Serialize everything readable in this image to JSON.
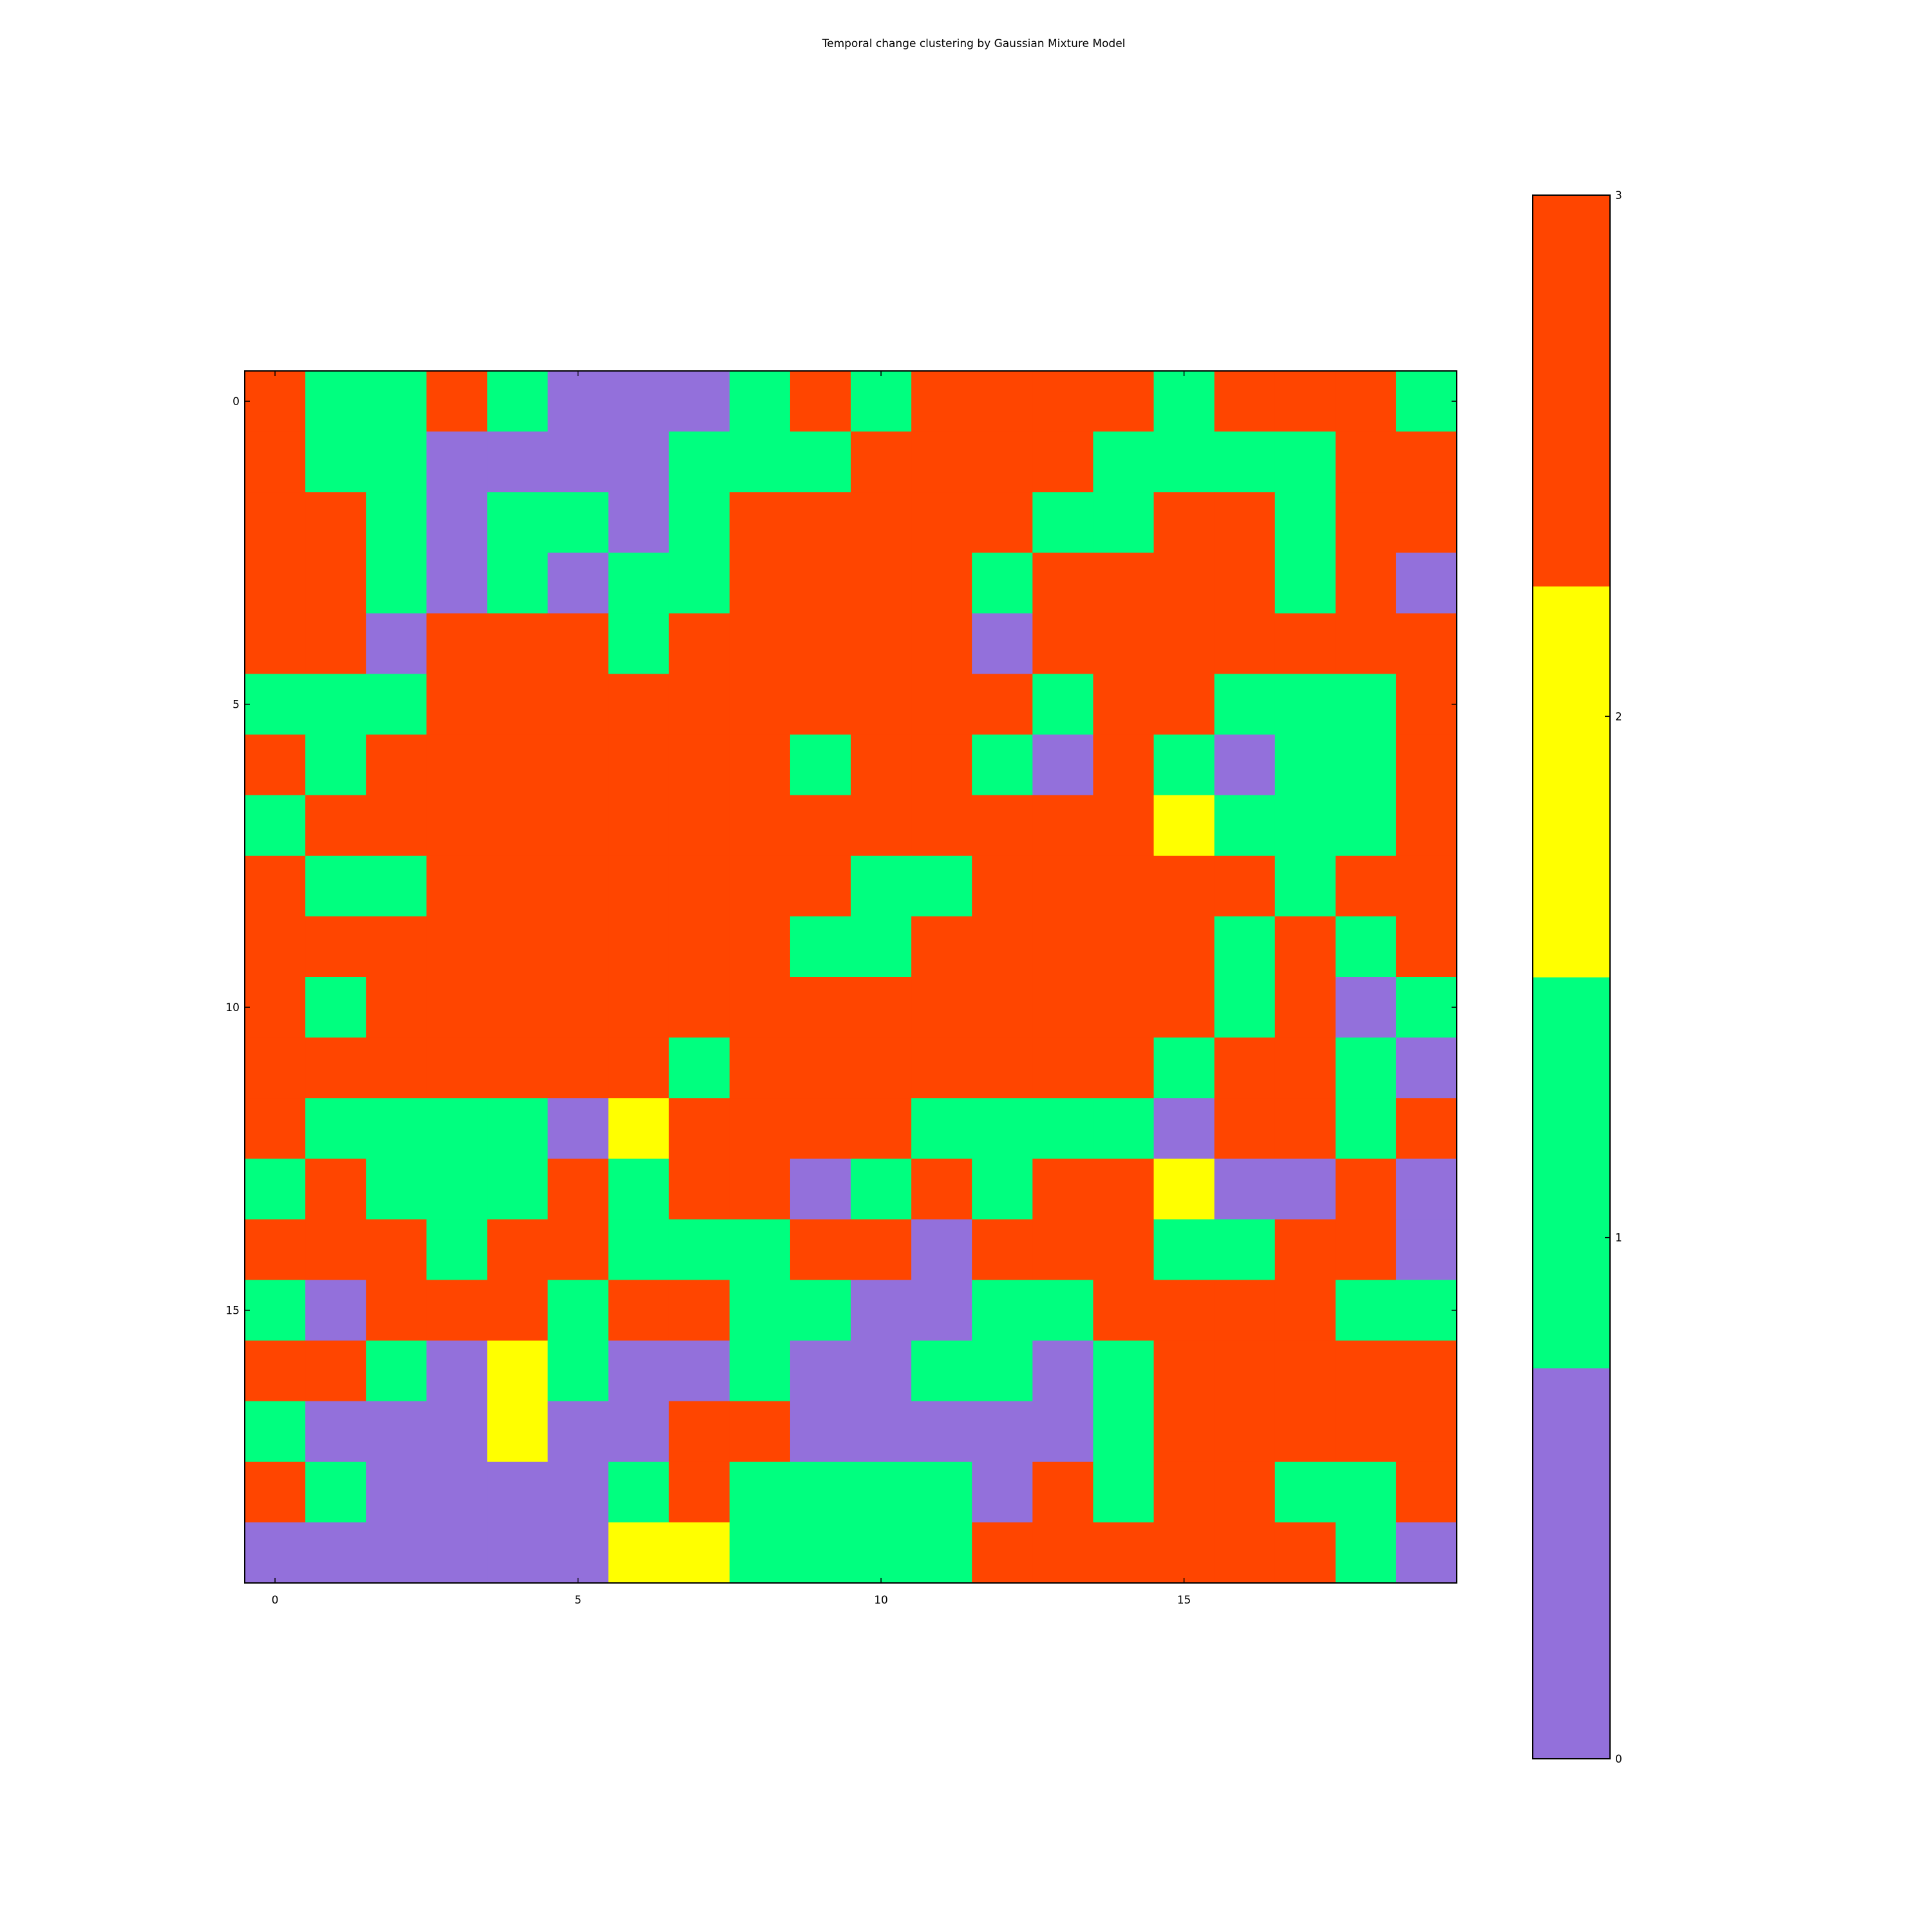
{
  "chart_data": {
    "type": "heatmap",
    "title": "Temporal change clustering by Gaussian Mixture Model",
    "xlabel": "",
    "ylabel": "",
    "x_ticks": [
      "0",
      "5",
      "10",
      "15"
    ],
    "y_ticks": [
      "0",
      "5",
      "10",
      "15"
    ],
    "grid": false,
    "colormap": [
      "#9370db",
      "#00ff7f",
      "#ffff00",
      "#ff4500"
    ],
    "colorbar": {
      "placement": "right",
      "ticks": [
        "0",
        "1",
        "2",
        "3"
      ],
      "range": [
        0,
        3
      ]
    },
    "matrix": [
      [
        3,
        1,
        1,
        3,
        1,
        0,
        0,
        0,
        1,
        3,
        1,
        3,
        3,
        3,
        3,
        1,
        3,
        3,
        3,
        1
      ],
      [
        3,
        1,
        1,
        0,
        0,
        0,
        0,
        1,
        1,
        1,
        3,
        3,
        3,
        3,
        1,
        1,
        1,
        1,
        3,
        3
      ],
      [
        3,
        3,
        1,
        0,
        1,
        1,
        0,
        1,
        3,
        3,
        3,
        3,
        3,
        1,
        1,
        3,
        3,
        1,
        3,
        3
      ],
      [
        3,
        3,
        1,
        0,
        1,
        0,
        1,
        1,
        3,
        3,
        3,
        3,
        1,
        3,
        3,
        3,
        3,
        1,
        3,
        0
      ],
      [
        3,
        3,
        0,
        3,
        3,
        3,
        1,
        3,
        3,
        3,
        3,
        3,
        0,
        3,
        3,
        3,
        3,
        3,
        3,
        3
      ],
      [
        1,
        1,
        1,
        3,
        3,
        3,
        3,
        3,
        3,
        3,
        3,
        3,
        3,
        1,
        3,
        3,
        1,
        1,
        1,
        3
      ],
      [
        3,
        1,
        3,
        3,
        3,
        3,
        3,
        3,
        3,
        1,
        3,
        3,
        1,
        0,
        3,
        1,
        0,
        1,
        1,
        3
      ],
      [
        1,
        3,
        3,
        3,
        3,
        3,
        3,
        3,
        3,
        3,
        3,
        3,
        3,
        3,
        3,
        2,
        1,
        1,
        1,
        3
      ],
      [
        3,
        1,
        1,
        3,
        3,
        3,
        3,
        3,
        3,
        3,
        1,
        1,
        3,
        3,
        3,
        3,
        3,
        1,
        3,
        3
      ],
      [
        3,
        3,
        3,
        3,
        3,
        3,
        3,
        3,
        3,
        1,
        1,
        3,
        3,
        3,
        3,
        3,
        1,
        3,
        1,
        3
      ],
      [
        3,
        1,
        3,
        3,
        3,
        3,
        3,
        3,
        3,
        3,
        3,
        3,
        3,
        3,
        3,
        3,
        1,
        3,
        0,
        1
      ],
      [
        3,
        3,
        3,
        3,
        3,
        3,
        3,
        1,
        3,
        3,
        3,
        3,
        3,
        3,
        3,
        1,
        3,
        3,
        1,
        0
      ],
      [
        3,
        1,
        1,
        1,
        1,
        0,
        2,
        3,
        3,
        3,
        3,
        1,
        1,
        1,
        1,
        0,
        3,
        3,
        1,
        3
      ],
      [
        1,
        3,
        1,
        1,
        1,
        3,
        1,
        3,
        3,
        0,
        1,
        3,
        1,
        3,
        3,
        2,
        0,
        0,
        3,
        0
      ],
      [
        3,
        3,
        3,
        1,
        3,
        3,
        1,
        1,
        1,
        3,
        3,
        0,
        3,
        3,
        3,
        1,
        1,
        3,
        3,
        0
      ],
      [
        1,
        0,
        3,
        3,
        3,
        1,
        3,
        3,
        1,
        1,
        0,
        0,
        1,
        1,
        3,
        3,
        3,
        3,
        1,
        1
      ],
      [
        3,
        3,
        1,
        0,
        2,
        1,
        0,
        0,
        1,
        0,
        0,
        1,
        1,
        0,
        1,
        3,
        3,
        3,
        3,
        3
      ],
      [
        1,
        0,
        0,
        0,
        2,
        0,
        0,
        3,
        3,
        0,
        0,
        0,
        0,
        0,
        1,
        3,
        3,
        3,
        3,
        3
      ],
      [
        3,
        1,
        0,
        0,
        0,
        0,
        1,
        3,
        1,
        1,
        1,
        1,
        0,
        3,
        1,
        3,
        3,
        1,
        1,
        3
      ],
      [
        0,
        0,
        0,
        0,
        0,
        0,
        2,
        2,
        1,
        1,
        1,
        1,
        3,
        3,
        3,
        3,
        3,
        3,
        1,
        0
      ]
    ]
  }
}
